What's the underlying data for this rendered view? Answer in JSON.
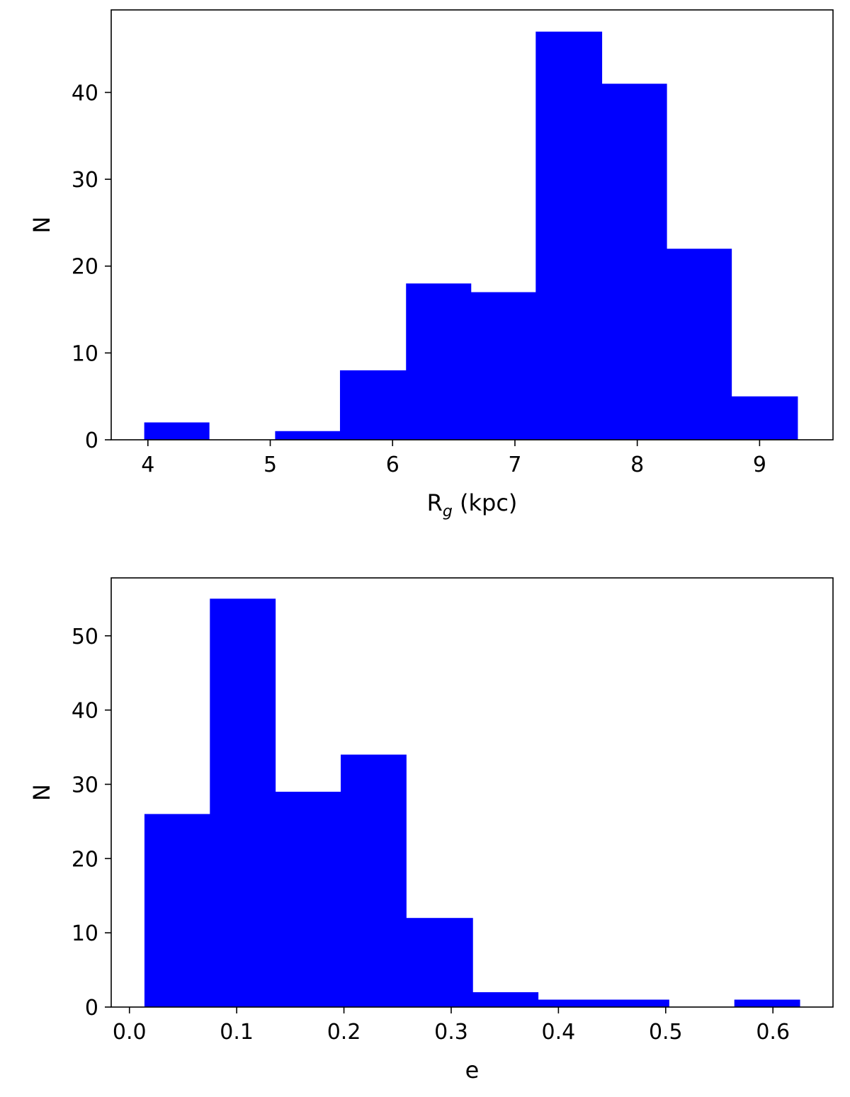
{
  "chart_data": [
    {
      "type": "bar",
      "bin_edges": [
        3.97,
        4.5,
        5.04,
        5.57,
        6.11,
        6.64,
        7.17,
        7.71,
        8.24,
        8.77,
        9.31
      ],
      "values": [
        2,
        0,
        1,
        8,
        18,
        17,
        47,
        41,
        22,
        5
      ],
      "xlabel": "R",
      "xlabel_sub": "g",
      "xlabel_unit": " (kpc)",
      "ylabel": "N",
      "xlim": [
        3.7,
        9.6
      ],
      "ylim": [
        0,
        49.5
      ],
      "xticks": [
        4,
        5,
        6,
        7,
        8,
        9
      ],
      "yticks": [
        0,
        10,
        20,
        30,
        40
      ],
      "xtick_labels": [
        "4",
        "5",
        "6",
        "7",
        "8",
        "9"
      ],
      "ytick_labels": [
        "0",
        "10",
        "20",
        "30",
        "40"
      ],
      "bar_color": "#0000ff"
    },
    {
      "type": "bar",
      "bin_edges": [
        0.014,
        0.075,
        0.136,
        0.197,
        0.258,
        0.32,
        0.381,
        0.442,
        0.503,
        0.564,
        0.625
      ],
      "values": [
        26,
        55,
        29,
        34,
        12,
        2,
        1,
        1,
        0,
        1
      ],
      "xlabel": "e",
      "ylabel": "N",
      "xlim": [
        -0.017,
        0.656
      ],
      "ylim": [
        0,
        57.8
      ],
      "xticks": [
        0.0,
        0.1,
        0.2,
        0.3,
        0.4,
        0.5,
        0.6
      ],
      "yticks": [
        0,
        10,
        20,
        30,
        40,
        50
      ],
      "xtick_labels": [
        "0.0",
        "0.1",
        "0.2",
        "0.3",
        "0.4",
        "0.5",
        "0.6"
      ],
      "ytick_labels": [
        "0",
        "10",
        "20",
        "30",
        "40",
        "50"
      ],
      "bar_color": "#0000ff"
    }
  ]
}
